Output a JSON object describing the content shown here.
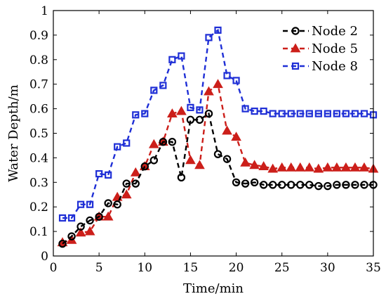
{
  "chart_data": {
    "type": "line",
    "title": "",
    "xlabel": "Time/min",
    "ylabel": "Water Depth/m",
    "xlim": [
      0,
      35
    ],
    "ylim": [
      0,
      1
    ],
    "xticks": [
      "0",
      "5",
      "10",
      "15",
      "20",
      "25",
      "30",
      "35"
    ],
    "yticks": [
      "0",
      "0.1",
      "0.2",
      "0.3",
      "0.4",
      "0.5",
      "0.6",
      "0.7",
      "0.8",
      "0.9",
      "1"
    ],
    "grid": false,
    "legend_position": "top-right",
    "x": [
      1,
      2,
      3,
      4,
      5,
      6,
      7,
      8,
      9,
      10,
      11,
      12,
      13,
      14,
      15,
      16,
      17,
      18,
      19,
      20,
      21,
      22,
      23,
      24,
      25,
      26,
      27,
      28,
      29,
      30,
      31,
      32,
      33,
      34,
      35
    ],
    "series": [
      {
        "name": "Node 2",
        "color": "#000000",
        "marker": "circle",
        "values": [
          0.05,
          0.08,
          0.12,
          0.145,
          0.16,
          0.215,
          0.21,
          0.295,
          0.295,
          0.365,
          0.39,
          0.465,
          0.465,
          0.32,
          0.555,
          0.555,
          0.58,
          0.415,
          0.395,
          0.3,
          0.295,
          0.3,
          0.29,
          0.29,
          0.29,
          0.29,
          0.29,
          0.29,
          0.285,
          0.285,
          0.29,
          0.29,
          0.29,
          0.29,
          0.29
        ]
      },
      {
        "name": "Node 5",
        "color": "#cc1f1a",
        "marker": "triangle",
        "values": [
          0.055,
          0.065,
          0.095,
          0.1,
          0.16,
          0.16,
          0.24,
          0.25,
          0.34,
          0.365,
          0.455,
          0.465,
          0.58,
          0.59,
          0.39,
          0.37,
          0.67,
          0.7,
          0.51,
          0.485,
          0.38,
          0.37,
          0.365,
          0.355,
          0.36,
          0.36,
          0.36,
          0.36,
          0.355,
          0.36,
          0.36,
          0.36,
          0.36,
          0.36,
          0.355
        ]
      },
      {
        "name": "Node 8",
        "color": "#1f2fd6",
        "marker": "square",
        "values": [
          0.155,
          0.155,
          0.21,
          0.21,
          0.335,
          0.33,
          0.445,
          0.46,
          0.575,
          0.58,
          0.675,
          0.695,
          0.8,
          0.815,
          0.605,
          0.595,
          0.89,
          0.92,
          0.735,
          0.715,
          0.6,
          0.59,
          0.59,
          0.58,
          0.58,
          0.58,
          0.58,
          0.58,
          0.58,
          0.58,
          0.58,
          0.58,
          0.58,
          0.58,
          0.575
        ]
      }
    ]
  }
}
